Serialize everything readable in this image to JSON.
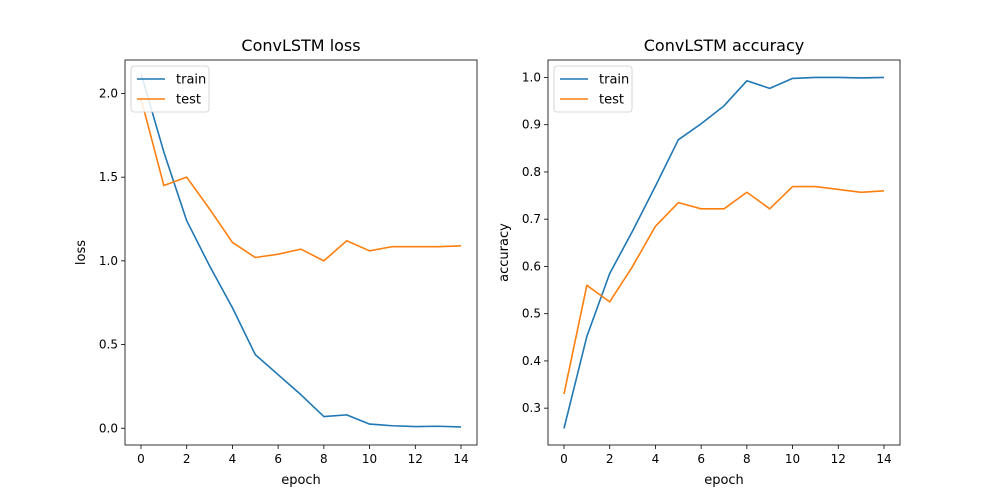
{
  "chart_data": [
    {
      "type": "line",
      "title": "ConvLSTM loss",
      "xlabel": "epoch",
      "ylabel": "loss",
      "x": [
        0,
        1,
        2,
        3,
        4,
        5,
        6,
        7,
        8,
        9,
        10,
        11,
        12,
        13,
        14
      ],
      "xlim": [
        -0.7,
        14.7
      ],
      "ylim": [
        -0.1,
        2.2
      ],
      "xticks": [
        0,
        2,
        4,
        6,
        8,
        10,
        12,
        14
      ],
      "xtick_labels": [
        "0",
        "2",
        "4",
        "6",
        "8",
        "10",
        "12",
        "14"
      ],
      "yticks": [
        0.0,
        0.5,
        1.0,
        1.5,
        2.0
      ],
      "ytick_labels": [
        "0.0",
        "0.5",
        "1.0",
        "1.5",
        "2.0"
      ],
      "grid": false,
      "legend": "top-left",
      "series": [
        {
          "name": "train",
          "color": "#1f77b4",
          "values": [
            2.12,
            1.65,
            1.24,
            0.97,
            0.72,
            0.44,
            0.32,
            0.2,
            0.07,
            0.08,
            0.025,
            0.015,
            0.01,
            0.012,
            0.008
          ]
        },
        {
          "name": "test",
          "color": "#ff7f0e",
          "values": [
            1.97,
            1.45,
            1.5,
            1.31,
            1.11,
            1.02,
            1.04,
            1.07,
            1.0,
            1.12,
            1.06,
            1.085,
            1.085,
            1.085,
            1.09
          ]
        }
      ]
    },
    {
      "type": "line",
      "title": "ConvLSTM accuracy",
      "xlabel": "epoch",
      "ylabel": "accuracy",
      "x": [
        0,
        1,
        2,
        3,
        4,
        5,
        6,
        7,
        8,
        9,
        10,
        11,
        12,
        13,
        14
      ],
      "xlim": [
        -0.7,
        14.7
      ],
      "ylim": [
        0.222,
        1.037
      ],
      "xticks": [
        0,
        2,
        4,
        6,
        8,
        10,
        12,
        14
      ],
      "xtick_labels": [
        "0",
        "2",
        "4",
        "6",
        "8",
        "10",
        "12",
        "14"
      ],
      "yticks": [
        0.3,
        0.4,
        0.5,
        0.6,
        0.7,
        0.8,
        0.9,
        1.0
      ],
      "ytick_labels": [
        "0.3",
        "0.4",
        "0.5",
        "0.6",
        "0.7",
        "0.8",
        "0.9",
        "1.0"
      ],
      "grid": false,
      "legend": "top-left",
      "series": [
        {
          "name": "train",
          "color": "#1f77b4",
          "values": [
            0.257,
            0.452,
            0.585,
            0.675,
            0.77,
            0.868,
            0.902,
            0.94,
            0.993,
            0.977,
            0.998,
            1.0,
            1.0,
            0.999,
            1.0
          ]
        },
        {
          "name": "test",
          "color": "#ff7f0e",
          "values": [
            0.33,
            0.56,
            0.525,
            0.6,
            0.685,
            0.735,
            0.722,
            0.722,
            0.757,
            0.722,
            0.769,
            0.769,
            0.763,
            0.757,
            0.76
          ]
        }
      ]
    }
  ]
}
